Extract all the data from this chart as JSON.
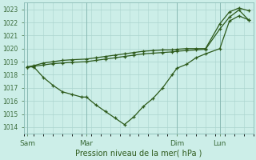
{
  "xlabel": "Pression niveau de la mer( hPa )",
  "background_color": "#cceee8",
  "grid_color": "#aad4ce",
  "line_color": "#2d5a1b",
  "ylim": [
    1013.5,
    1023.5
  ],
  "yticks": [
    1014,
    1015,
    1016,
    1017,
    1018,
    1019,
    1020,
    1021,
    1022,
    1023
  ],
  "xlim": [
    0,
    24
  ],
  "day_labels": [
    "Sam",
    "Mar",
    "Dim",
    "Lun"
  ],
  "day_positions": [
    0.3,
    6.5,
    16.0,
    20.5
  ],
  "vline_positions": [
    0.3,
    6.5,
    16.0,
    20.5
  ],
  "series1_x": [
    0.3,
    1.0,
    2.0,
    3.0,
    4.0,
    5.0,
    6.0,
    6.5,
    7.5,
    8.5,
    9.5,
    10.5,
    11.5,
    12.5,
    13.5,
    14.5,
    15.5,
    16.0,
    17.0,
    18.0,
    19.0,
    20.5,
    21.5,
    22.5,
    23.5
  ],
  "series1_y": [
    1018.6,
    1018.6,
    1017.8,
    1017.2,
    1016.7,
    1016.5,
    1016.3,
    1016.3,
    1015.7,
    1015.2,
    1014.7,
    1014.2,
    1014.8,
    1015.6,
    1016.2,
    1017.0,
    1018.0,
    1018.5,
    1018.8,
    1019.3,
    1019.6,
    1020.0,
    1022.1,
    1022.5,
    1022.2
  ],
  "series2_x": [
    0.3,
    1.0,
    2.0,
    3.0,
    4.0,
    5.0,
    6.5,
    7.5,
    8.5,
    9.5,
    10.5,
    11.5,
    12.5,
    13.5,
    14.5,
    15.5,
    16.0,
    17.0,
    18.0,
    19.0,
    20.5,
    21.5,
    22.5,
    23.5
  ],
  "series2_y": [
    1018.6,
    1018.7,
    1018.9,
    1019.0,
    1019.1,
    1019.15,
    1019.2,
    1019.3,
    1019.4,
    1019.5,
    1019.6,
    1019.7,
    1019.8,
    1019.85,
    1019.9,
    1019.9,
    1019.95,
    1020.0,
    1020.0,
    1020.0,
    1021.9,
    1022.8,
    1023.1,
    1022.9
  ],
  "series3_x": [
    0.3,
    1.0,
    2.0,
    3.0,
    4.0,
    5.0,
    6.5,
    7.5,
    8.5,
    9.5,
    10.5,
    11.5,
    12.5,
    13.5,
    14.5,
    15.5,
    16.0,
    17.0,
    18.0,
    19.0,
    20.5,
    21.5,
    22.5,
    23.5
  ],
  "series3_y": [
    1018.6,
    1018.65,
    1018.75,
    1018.85,
    1018.9,
    1018.95,
    1019.0,
    1019.1,
    1019.2,
    1019.3,
    1019.4,
    1019.5,
    1019.6,
    1019.65,
    1019.7,
    1019.75,
    1019.8,
    1019.85,
    1019.9,
    1019.95,
    1021.5,
    1022.4,
    1022.95,
    1022.2
  ]
}
